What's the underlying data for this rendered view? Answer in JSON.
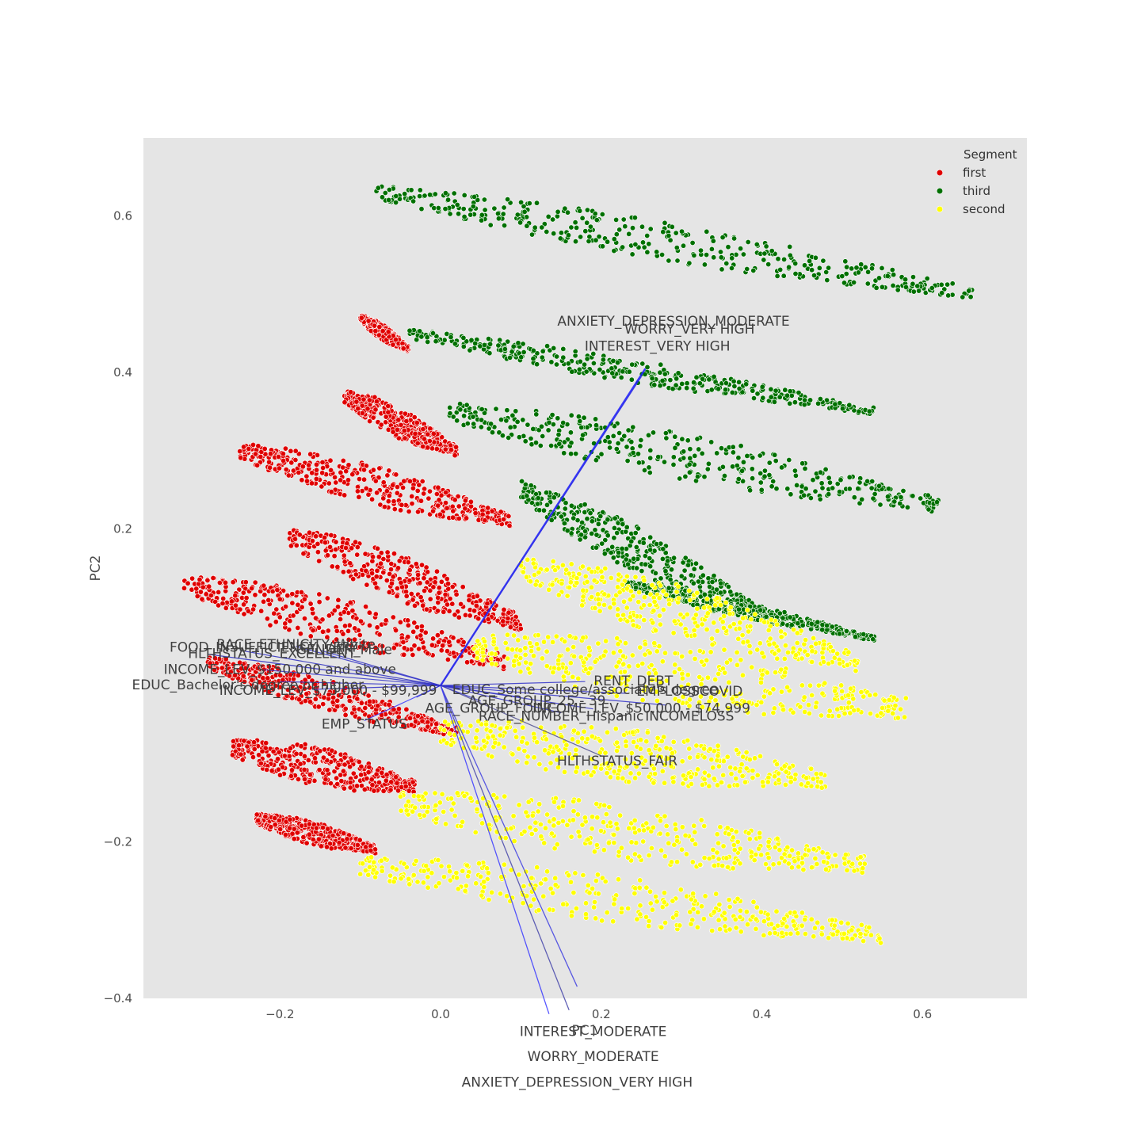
{
  "chart_data": {
    "type": "scatter",
    "title": "",
    "xlabel": "PC1",
    "ylabel": "PC2",
    "xlim": [
      -0.37,
      0.73
    ],
    "ylim": [
      -0.4,
      0.7
    ],
    "xticks": [
      -0.2,
      0.0,
      0.2,
      0.4,
      0.6
    ],
    "xtick_labels": [
      "−0.2",
      "0.0",
      "0.2",
      "0.4",
      "0.6"
    ],
    "yticks": [
      -0.4,
      -0.2,
      0.2,
      0.4,
      0.6
    ],
    "ytick_labels": [
      "−0.4",
      "−0.2",
      "0.2",
      "0.4",
      "0.6"
    ],
    "grid": false,
    "background": "#e5e5e5",
    "legend": {
      "title": "Segment",
      "placement": "top-right",
      "entries": [
        {
          "label": "first",
          "color": "#e00000"
        },
        {
          "label": "third",
          "color": "#007000"
        },
        {
          "label": "second",
          "color": "#ffff00"
        }
      ]
    },
    "series": [
      {
        "name": "first",
        "color": "#e00000",
        "bands": [
          {
            "left": [
              -0.1,
              0.47
            ],
            "right": [
              -0.04,
              0.43
            ],
            "spread": 0.02
          },
          {
            "left": [
              -0.12,
              0.37
            ],
            "right": [
              0.02,
              0.3
            ],
            "spread": 0.04
          },
          {
            "left": [
              -0.25,
              0.3
            ],
            "right": [
              0.09,
              0.21
            ],
            "spread": 0.05
          },
          {
            "left": [
              -0.19,
              0.19
            ],
            "right": [
              0.1,
              0.08
            ],
            "spread": 0.06
          },
          {
            "left": [
              -0.32,
              0.13
            ],
            "right": [
              0.08,
              0.03
            ],
            "spread": 0.06
          },
          {
            "left": [
              -0.29,
              0.03
            ],
            "right": [
              0.02,
              -0.06
            ],
            "spread": 0.04
          },
          {
            "left": [
              -0.26,
              -0.08
            ],
            "right": [
              -0.03,
              -0.13
            ],
            "spread": 0.05
          },
          {
            "left": [
              -0.23,
              -0.17
            ],
            "right": [
              -0.08,
              -0.21
            ],
            "spread": 0.03
          }
        ]
      },
      {
        "name": "third",
        "color": "#007000",
        "bands": [
          {
            "left": [
              -0.08,
              0.63
            ],
            "right": [
              0.67,
              0.5
            ],
            "spread": 0.05
          },
          {
            "left": [
              -0.04,
              0.45
            ],
            "right": [
              0.54,
              0.35
            ],
            "spread": 0.03
          },
          {
            "left": [
              0.01,
              0.35
            ],
            "right": [
              0.62,
              0.23
            ],
            "spread": 0.06
          },
          {
            "left": [
              0.1,
              0.25
            ],
            "right": [
              0.4,
              0.09
            ],
            "spread": 0.06
          },
          {
            "left": [
              0.23,
              0.13
            ],
            "right": [
              0.54,
              0.06
            ],
            "spread": 0.02
          }
        ]
      },
      {
        "name": "second",
        "color": "#ffff00",
        "bands": [
          {
            "left": [
              0.1,
              0.15
            ],
            "right": [
              0.52,
              0.03
            ],
            "spread": 0.07
          },
          {
            "left": [
              0.04,
              0.05
            ],
            "right": [
              0.58,
              -0.03
            ],
            "spread": 0.08
          },
          {
            "left": [
              0.0,
              -0.06
            ],
            "right": [
              0.48,
              -0.12
            ],
            "spread": 0.07
          },
          {
            "left": [
              -0.05,
              -0.15
            ],
            "right": [
              0.53,
              -0.23
            ],
            "spread": 0.07
          },
          {
            "left": [
              -0.1,
              -0.23
            ],
            "right": [
              0.55,
              -0.32
            ],
            "spread": 0.06
          }
        ]
      }
    ],
    "loading_vectors": [
      {
        "x": 0.255,
        "y": 0.405,
        "color": "#1a1aff",
        "width": 2.4
      },
      {
        "x": 0.25,
        "y": 0.395,
        "color": "#3030e0",
        "width": 1.4
      },
      {
        "x": 0.17,
        "y": -0.385,
        "color": "#4040e0",
        "width": 1.3
      },
      {
        "x": 0.16,
        "y": -0.415,
        "color": "#4646aa",
        "width": 1.3
      },
      {
        "x": 0.135,
        "y": -0.42,
        "color": "#3a3aff",
        "width": 1.3
      },
      {
        "x": 0.2,
        "y": -0.09,
        "color": "#505090",
        "width": 1.2
      },
      {
        "x": -0.095,
        "y": -0.045,
        "color": "#3a3aff",
        "width": 1.2
      },
      {
        "x": -0.29,
        "y": 0.04,
        "color": "#2a2ac0",
        "width": 1.3
      },
      {
        "x": -0.25,
        "y": 0.045,
        "color": "#2a2ac0",
        "width": 1.2
      },
      {
        "x": -0.18,
        "y": 0.05,
        "color": "#3030c8",
        "width": 1.2
      },
      {
        "x": -0.15,
        "y": 0.045,
        "color": "#3030c8",
        "width": 1.2
      },
      {
        "x": -0.22,
        "y": 0.02,
        "color": "#3030c8",
        "width": 1.2
      },
      {
        "x": -0.2,
        "y": 0.005,
        "color": "#3030c8",
        "width": 1.2
      },
      {
        "x": -0.16,
        "y": -0.005,
        "color": "#3030c8",
        "width": 1.2
      },
      {
        "x": 0.18,
        "y": 0.005,
        "color": "#3030c8",
        "width": 1.2
      },
      {
        "x": 0.23,
        "y": -0.01,
        "color": "#3030c8",
        "width": 1.2
      },
      {
        "x": 0.28,
        "y": -0.025,
        "color": "#3030c8",
        "width": 1.2
      },
      {
        "x": 0.19,
        "y": -0.03,
        "color": "#3030c8",
        "width": 1.2
      },
      {
        "x": 0.15,
        "y": -0.035,
        "color": "#3030c8",
        "width": 1.2
      },
      {
        "x": 0.1,
        "y": -0.015,
        "color": "#3030c8",
        "width": 1.2
      },
      {
        "x": 0.05,
        "y": -0.02,
        "color": "#3030c8",
        "width": 1.2
      },
      {
        "x": -0.03,
        "y": -0.015,
        "color": "#3030c8",
        "width": 1.2
      }
    ],
    "vector_labels": [
      {
        "text": "ANXIETY_DEPRESSION_MODERATE",
        "x": 0.29,
        "y": 0.465
      },
      {
        "text": "WORRY_VERY HIGH",
        "x": 0.31,
        "y": 0.455
      },
      {
        "text": "INTEREST_VERY HIGH",
        "x": 0.27,
        "y": 0.433
      },
      {
        "text": "HLTHSTATUS_FAIR",
        "x": 0.22,
        "y": -0.097
      },
      {
        "text": "EMP_STATUS",
        "x": -0.095,
        "y": -0.05
      },
      {
        "text": "RENT_DEBT",
        "x": 0.24,
        "y": 0.005
      },
      {
        "text": "INCOME_LEV_$50,000 - $74,999",
        "x": 0.25,
        "y": -0.03
      },
      {
        "text": "INCOMELOSS",
        "x": 0.31,
        "y": -0.04
      },
      {
        "text": "RACE_NUMBER_Hispanic",
        "x": 0.15,
        "y": -0.04
      },
      {
        "text": "EDUC_Some college/associate's degree",
        "x": 0.18,
        "y": -0.006
      },
      {
        "text": "EMPLOSSCOVID",
        "x": 0.31,
        "y": -0.008
      },
      {
        "text": "AGE_GROUP_25 - 39",
        "x": 0.12,
        "y": -0.02
      },
      {
        "text": "AGE_GROUP_FOUR",
        "x": 0.06,
        "y": -0.03
      },
      {
        "text": "HLTHSTATUS_EXCELLENT",
        "x": -0.21,
        "y": 0.04
      },
      {
        "text": "FOOD_INSUFFICIENCY_VERY",
        "x": -0.22,
        "y": 0.048
      },
      {
        "text": "RACE_ETHNICITY_White",
        "x": -0.18,
        "y": 0.052
      },
      {
        "text": "GENDER_Male",
        "x": -0.12,
        "y": 0.045
      },
      {
        "text": "INCOME_LEV_$150,000 and above",
        "x": -0.2,
        "y": 0.02
      },
      {
        "text": "EDUC_Bachelor's degree or higher",
        "x": -0.24,
        "y": 0.0
      },
      {
        "text": "INCOME_LEV_$75,000 - $99,999",
        "x": -0.14,
        "y": -0.007
      },
      {
        "text": "INTEREST_MODERATE",
        "x": 0.19,
        "y": -0.443
      },
      {
        "text": "WORRY_MODERATE",
        "x": 0.19,
        "y": -0.475
      },
      {
        "text": "ANXIETY_DEPRESSION_VERY HIGH",
        "x": 0.17,
        "y": -0.508
      }
    ]
  }
}
